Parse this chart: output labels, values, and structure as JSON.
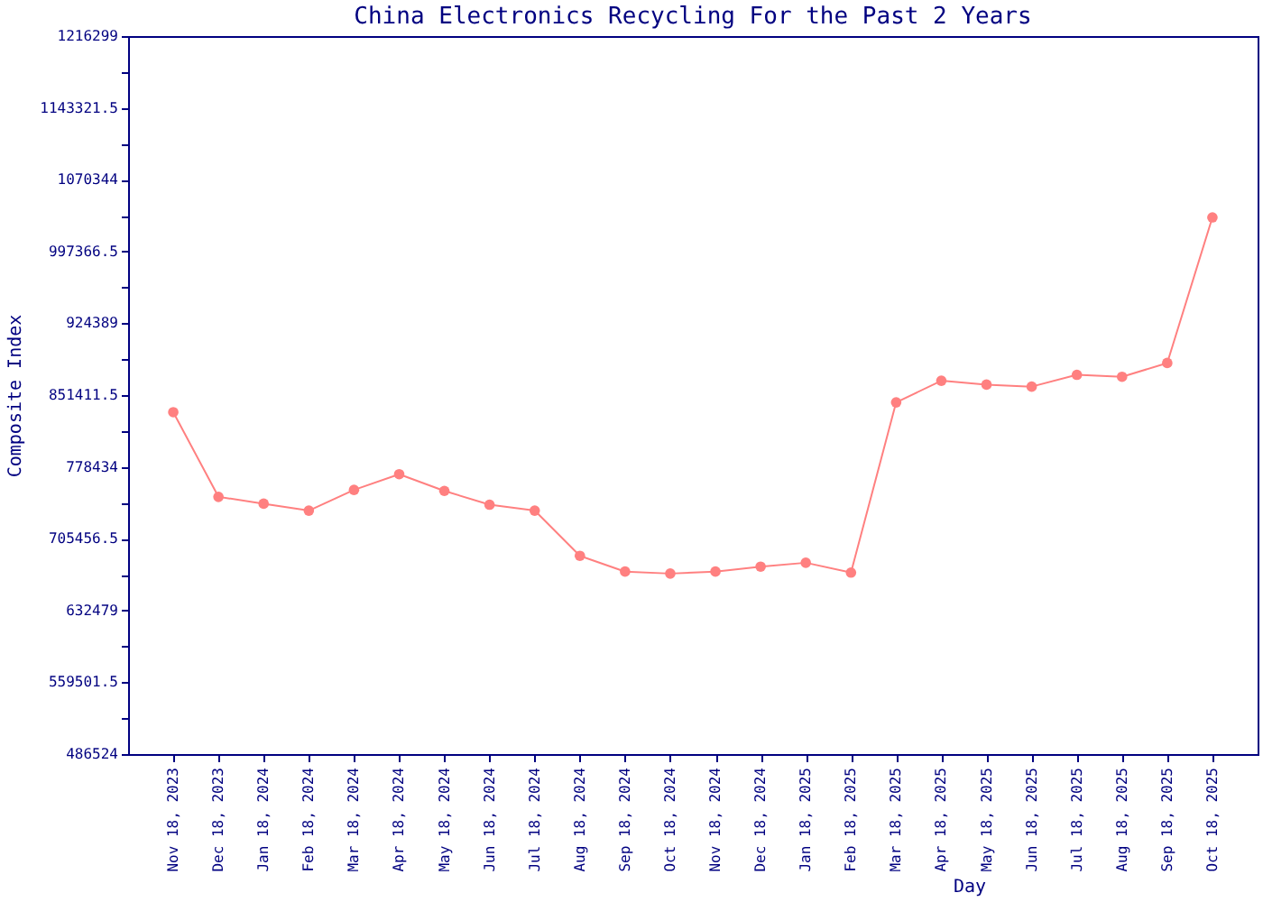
{
  "chart_data": {
    "type": "line",
    "title": "China Electronics Recycling For the Past 2 Years",
    "xlabel": "Day",
    "ylabel": "Composite Index",
    "categories": [
      "Nov 18, 2023",
      "Dec 18, 2023",
      "Jan 18, 2024",
      "Feb 18, 2024",
      "Mar 18, 2024",
      "Apr 18, 2024",
      "May 18, 2024",
      "Jun 18, 2024",
      "Jul 18, 2024",
      "Aug 18, 2024",
      "Sep 18, 2024",
      "Oct 18, 2024",
      "Nov 18, 2024",
      "Dec 18, 2024",
      "Jan 18, 2025",
      "Feb 18, 2025",
      "Mar 18, 2025",
      "Apr 18, 2025",
      "May 18, 2025",
      "Jun 18, 2025",
      "Jul 18, 2025",
      "Aug 18, 2025",
      "Sep 18, 2025",
      "Oct 18, 2025"
    ],
    "values": [
      834000,
      748000,
      741000,
      734000,
      755000,
      771000,
      754000,
      740000,
      734000,
      688000,
      672000,
      670000,
      672000,
      677000,
      681000,
      671000,
      844000,
      866000,
      862000,
      860000,
      872000,
      870000,
      884000,
      1032000
    ],
    "color": "#ff8080",
    "ylim": [
      486524,
      1216299
    ],
    "yticks": [
      486524,
      {
        "value": 523012.75,
        "label": null
      },
      559501.5,
      {
        "value": 595990.25,
        "label": null
      },
      632479,
      {
        "value": 668967.75,
        "label": null
      },
      705456.5,
      {
        "value": 741945.25,
        "label": null
      },
      778434,
      {
        "value": 814922.75,
        "label": null
      },
      851411.5,
      {
        "value": 887900.25,
        "label": null
      },
      924389,
      {
        "value": 960877.75,
        "label": null
      },
      997366.5,
      {
        "value": 1033855.25,
        "label": null
      },
      1070344,
      {
        "value": 1106832.75,
        "label": null
      },
      1143321.5,
      {
        "value": 1179810.25,
        "label": null
      },
      1216299
    ],
    "marker": "circle",
    "line_style": "solid",
    "grid": false
  }
}
